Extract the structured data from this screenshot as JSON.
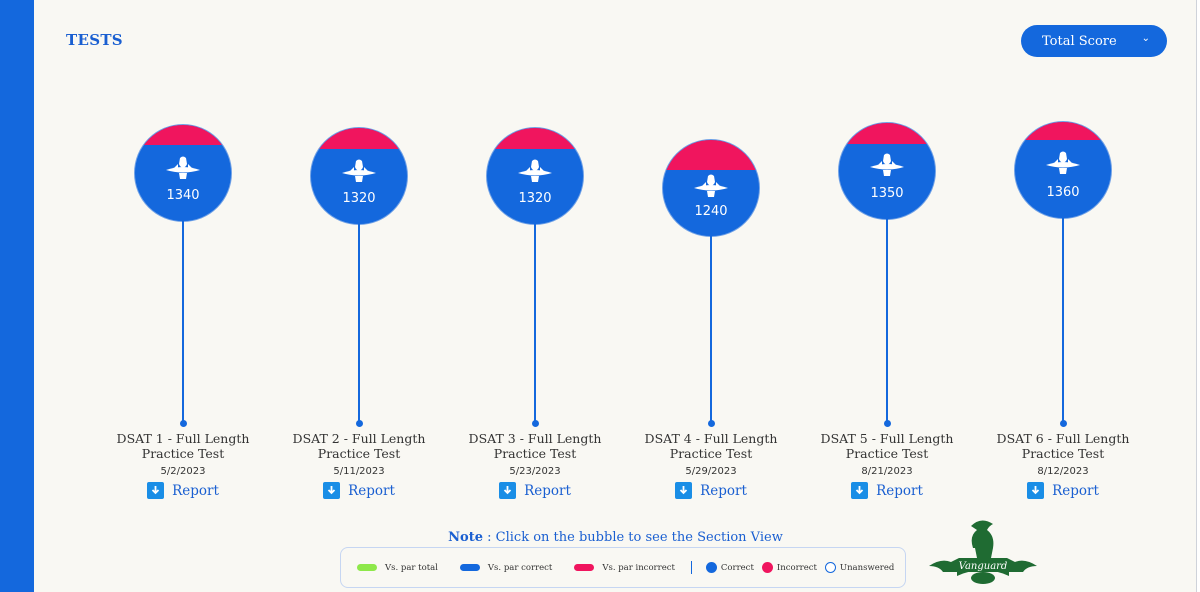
{
  "page": {
    "title": "TESTS"
  },
  "dropdown": {
    "label": "Total Score"
  },
  "tests": [
    {
      "name": "DSAT 1 - Full Length Practice Test",
      "date": "5/2/2023",
      "score": "1340",
      "report_label": "Report"
    },
    {
      "name": "DSAT 2 - Full Length Practice Test",
      "date": "5/11/2023",
      "score": "1320",
      "report_label": "Report"
    },
    {
      "name": "DSAT 3 - Full Length Practice Test",
      "date": "5/23/2023",
      "score": "1320",
      "report_label": "Report"
    },
    {
      "name": "DSAT 4 - Full Length Practice Test",
      "date": "5/29/2023",
      "score": "1240",
      "report_label": "Report"
    },
    {
      "name": "DSAT 5 - Full Length Practice Test",
      "date": "8/21/2023",
      "score": "1350",
      "report_label": "Report"
    },
    {
      "name": "DSAT 6 - Full Length Practice Test",
      "date": "8/12/2023",
      "score": "1360",
      "report_label": "Report"
    }
  ],
  "note": {
    "prefix": "Note",
    "text": ": Click on the bubble to see the Section View"
  },
  "legend": {
    "items": [
      {
        "label": "Vs. par total",
        "color": "#8ee84a"
      },
      {
        "label": "Vs. par correct",
        "color": "#1468dd"
      },
      {
        "label": "Vs. par incorrect",
        "color": "#f0155e"
      }
    ],
    "answers": [
      {
        "label": "Correct",
        "color": "#1468dd"
      },
      {
        "label": "Incorrect",
        "color": "#f0155e"
      },
      {
        "label": "Unanswered",
        "color": "#ffffff"
      }
    ]
  },
  "brand": {
    "name": "Vanguard"
  },
  "colors": {
    "accent": "#1468dd",
    "incorrect": "#f0155e",
    "background": "#f9f8f3"
  }
}
